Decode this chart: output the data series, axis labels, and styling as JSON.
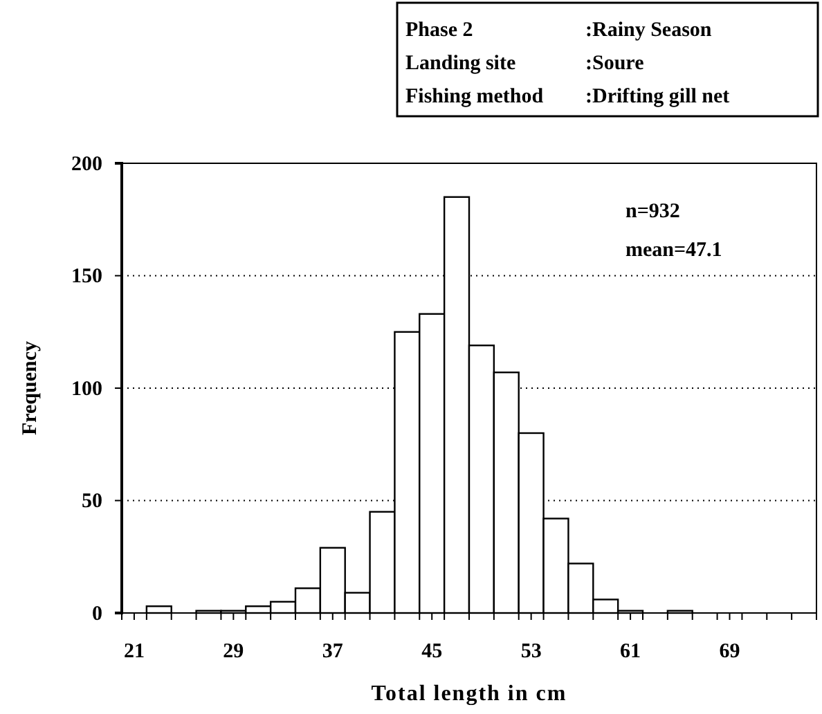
{
  "chart_data": {
    "type": "histogram",
    "xlabel": "Total length in cm",
    "ylabel": "Frequency",
    "bins": [
      20,
      22,
      24,
      26,
      28,
      30,
      32,
      34,
      36,
      38,
      40,
      42,
      44,
      46,
      48,
      50,
      52,
      54,
      56,
      58,
      60,
      62,
      64,
      66,
      68,
      70,
      72,
      74,
      76
    ],
    "values": [
      0,
      3,
      0,
      1,
      1,
      3,
      5,
      11,
      29,
      9,
      45,
      125,
      133,
      185,
      119,
      107,
      80,
      42,
      22,
      6,
      1,
      0,
      1,
      0,
      0,
      0,
      0,
      0
    ],
    "color": "#ffffff",
    "xlim": [
      20,
      76
    ],
    "xticks": [
      {
        "value": 20,
        "label": null
      },
      {
        "value": 21,
        "label": "21"
      },
      {
        "value": 22,
        "label": null
      },
      {
        "value": 24,
        "label": null
      },
      {
        "value": 26,
        "label": null
      },
      {
        "value": 28,
        "label": null
      },
      {
        "value": 29,
        "label": "29"
      },
      {
        "value": 30,
        "label": null
      },
      {
        "value": 32,
        "label": null
      },
      {
        "value": 34,
        "label": null
      },
      {
        "value": 36,
        "label": null
      },
      {
        "value": 37,
        "label": "37"
      },
      {
        "value": 38,
        "label": null
      },
      {
        "value": 40,
        "label": null
      },
      {
        "value": 42,
        "label": null
      },
      {
        "value": 44,
        "label": null
      },
      {
        "value": 45,
        "label": "45"
      },
      {
        "value": 46,
        "label": null
      },
      {
        "value": 48,
        "label": null
      },
      {
        "value": 50,
        "label": null
      },
      {
        "value": 52,
        "label": null
      },
      {
        "value": 53,
        "label": "53"
      },
      {
        "value": 54,
        "label": null
      },
      {
        "value": 56,
        "label": null
      },
      {
        "value": 58,
        "label": null
      },
      {
        "value": 60,
        "label": null
      },
      {
        "value": 61,
        "label": "61"
      },
      {
        "value": 62,
        "label": null
      },
      {
        "value": 64,
        "label": null
      },
      {
        "value": 66,
        "label": null
      },
      {
        "value": 68,
        "label": null
      },
      {
        "value": 69,
        "label": "69"
      },
      {
        "value": 70,
        "label": null
      },
      {
        "value": 72,
        "label": null
      },
      {
        "value": 74,
        "label": null
      }
    ],
    "ylim": [
      0,
      200
    ],
    "yticks": [
      0,
      50,
      100,
      150,
      200
    ],
    "grid": "y",
    "annotations": [
      "Phase 2",
      ":Rainy Season",
      "Landing site",
      ":Soure",
      "Fishing method",
      ":Drifting gill net",
      "n=932",
      "mean=47.1"
    ]
  }
}
